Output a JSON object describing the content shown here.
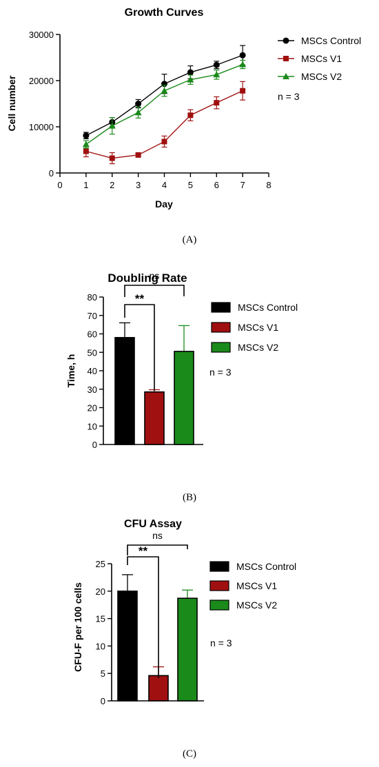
{
  "figure": {
    "panel_labels": [
      "(A)",
      "(B)",
      "(C)"
    ]
  },
  "colors": {
    "control": "#000000",
    "v1": "#a01010",
    "v2": "#1a8a1a"
  },
  "chart_data": [
    {
      "type": "line",
      "title": "Growth Curves",
      "xlabel": "Day",
      "ylabel": "Cell number",
      "xlim": [
        0,
        8
      ],
      "ylim": [
        0,
        30000
      ],
      "x_ticks": [
        "0",
        "1",
        "2",
        "3",
        "4",
        "5",
        "6",
        "7",
        "8"
      ],
      "y_ticks": [
        "0",
        "10000",
        "20000",
        "30000"
      ],
      "x": [
        1,
        2,
        3,
        4,
        5,
        6,
        7
      ],
      "series": [
        {
          "name": "MSCs Control",
          "marker": "circle",
          "color": "#000000",
          "values": [
            8100,
            11000,
            15000,
            19300,
            21800,
            23400,
            25500
          ],
          "errors": [
            700,
            1000,
            900,
            2100,
            1400,
            800,
            2100
          ]
        },
        {
          "name": "MSCs V1",
          "marker": "square",
          "color": "#a01010",
          "values": [
            4700,
            3200,
            3900,
            6800,
            12500,
            15200,
            17800
          ],
          "errors": [
            1200,
            1200,
            300,
            1200,
            1200,
            1300,
            2000
          ]
        },
        {
          "name": "MSCs V2",
          "marker": "triangle",
          "color": "#1a8a1a",
          "values": [
            6200,
            10200,
            13100,
            17800,
            20200,
            21300,
            23500
          ],
          "errors": [
            800,
            1800,
            1200,
            1200,
            1000,
            1000,
            900
          ]
        }
      ],
      "annotation": "n = 3",
      "legend": "right"
    },
    {
      "type": "bar",
      "title": "Doubling Rate",
      "xlabel": "",
      "ylabel": "Time, h",
      "ylim": [
        0,
        80
      ],
      "y_ticks": [
        "0",
        "10",
        "20",
        "30",
        "40",
        "50",
        "60",
        "70",
        "80"
      ],
      "categories": [
        "MSCs Control",
        "MSCs V1",
        "MSCs V2"
      ],
      "values": [
        58,
        28.5,
        50.5
      ],
      "errors": [
        8,
        1.2,
        14
      ],
      "colors": [
        "#000000",
        "#a01010",
        "#1a8a1a"
      ],
      "significance": [
        {
          "from": 0,
          "to": 1,
          "label": "**"
        },
        {
          "from": 0,
          "to": 2,
          "label": "ns"
        }
      ],
      "annotation": "n = 3",
      "legend": "right"
    },
    {
      "type": "bar",
      "title": "CFU Assay",
      "xlabel": "",
      "ylabel": "CFU-F per 100 cells",
      "ylim": [
        0,
        25
      ],
      "y_ticks": [
        "0",
        "5",
        "10",
        "15",
        "20",
        "25"
      ],
      "categories": [
        "MSCs Control",
        "MSCs V1",
        "MSCs V2"
      ],
      "values": [
        20,
        4.6,
        18.7
      ],
      "errors": [
        3,
        1.6,
        1.5
      ],
      "colors": [
        "#000000",
        "#a01010",
        "#1a8a1a"
      ],
      "significance": [
        {
          "from": 0,
          "to": 1,
          "label": "**"
        },
        {
          "from": 0,
          "to": 2,
          "label": "ns"
        }
      ],
      "annotation": "n = 3",
      "legend": "right"
    }
  ]
}
